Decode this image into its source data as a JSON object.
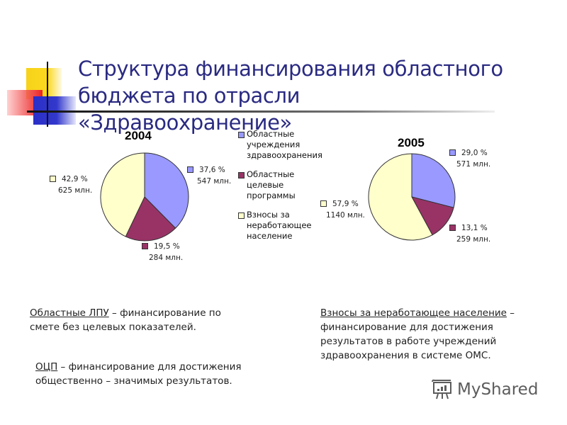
{
  "slide": {
    "title_line1": "Структура финансирования областного",
    "title_line2": "бюджета по отрасли «Здравоохранение»"
  },
  "legend": {
    "items": [
      {
        "label_l1": "Областные",
        "label_l2": "учреждения",
        "label_l3": "здравоохранения",
        "color": "#9999ff"
      },
      {
        "label_l1": "Областные",
        "label_l2": "целевые",
        "label_l3": "программы",
        "color": "#993366"
      },
      {
        "label_l1": "Взносы за",
        "label_l2": "неработающее",
        "label_l3": "население",
        "color": "#ffffcc"
      }
    ]
  },
  "pie2004": {
    "year": "2004",
    "labels": [
      {
        "pct": "37,6 %",
        "amt": "547 млн."
      },
      {
        "pct": "19,5 %",
        "amt": "284 млн."
      },
      {
        "pct": "42,9 %",
        "amt": "625 млн."
      }
    ]
  },
  "pie2005": {
    "year": "2005",
    "labels": [
      {
        "pct": "29,0 %",
        "amt": "571 млн."
      },
      {
        "pct": "13,1 %",
        "amt": "259 млн."
      },
      {
        "pct": "57,9 %",
        "amt": "1140 млн."
      }
    ]
  },
  "notes": {
    "lpu_term": "Областные ЛПУ",
    "lpu_rest1": " – финансирование по",
    "lpu_rest2": "смете без целевых показателей.",
    "ocp_term": "ОЦП",
    "ocp_rest1": " – финансирование для достижения",
    "ocp_rest2": "общественно – значимых результатов.",
    "vz_term": "Взносы за неработающее население",
    "vz_rest1": " –",
    "vz_rest2": "финансирование для достижения",
    "vz_rest3": "результатов в работе учреждений",
    "vz_rest4": "здравоохранения в системе ОМС."
  },
  "watermark": {
    "text": "MyShared"
  },
  "chart_data": [
    {
      "type": "pie",
      "title": "2004",
      "categories": [
        "Областные учреждения здравоохранения",
        "Областные целевые программы",
        "Взносы за неработающее население"
      ],
      "values": [
        37.6,
        19.5,
        42.9
      ],
      "amounts_mln": [
        547,
        284,
        625
      ],
      "colors": [
        "#9999ff",
        "#993366",
        "#ffffcc"
      ],
      "legend_position": "right"
    },
    {
      "type": "pie",
      "title": "2005",
      "categories": [
        "Областные учреждения здравоохранения",
        "Областные целевые программы",
        "Взносы за неработающее население"
      ],
      "values": [
        29.0,
        13.1,
        57.9
      ],
      "amounts_mln": [
        571,
        259,
        1140
      ],
      "colors": [
        "#9999ff",
        "#993366",
        "#ffffcc"
      ],
      "legend_position": "shared"
    }
  ]
}
